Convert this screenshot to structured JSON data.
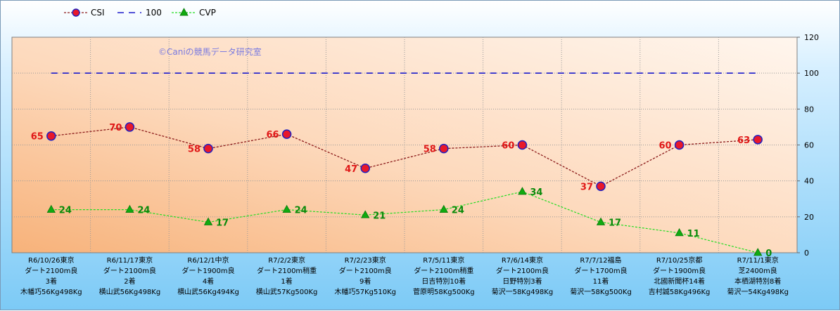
{
  "watermark": "©Caniの競馬データ研究室",
  "chart_data": {
    "type": "line",
    "ylim": [
      0,
      120
    ],
    "yticks": [
      0,
      20,
      40,
      60,
      80,
      100,
      120
    ],
    "grid": true,
    "legend_position": "top-left",
    "categories": [
      [
        "R6/10/26東京",
        "ダート2100m良",
        "3着",
        "木幡巧56Kg498Kg"
      ],
      [
        "R6/11/17東京",
        "ダート2100m良",
        "2着",
        "横山武56Kg498Kg"
      ],
      [
        "R6/12/1中京",
        "ダート1900m良",
        "4着",
        "横山武56Kg494Kg"
      ],
      [
        "R7/2/2東京",
        "ダート2100m稍重",
        "1着",
        "横山武57Kg500Kg"
      ],
      [
        "R7/2/23東京",
        "ダート2100m良",
        "9着",
        "木幡巧57Kg510Kg"
      ],
      [
        "R7/5/11東京",
        "ダート2100m稍重",
        "日吉特別10着",
        "菅原明58Kg500Kg"
      ],
      [
        "R7/6/14東京",
        "ダート2100m良",
        "日野特別3着",
        "菊沢一58Kg498Kg"
      ],
      [
        "R7/7/12福島",
        "ダート1700m良",
        "11着",
        "菊沢一58Kg500Kg"
      ],
      [
        "R7/10/25京都",
        "ダート1900m良",
        "北國新聞杯14着",
        "吉村誠58Kg496Kg"
      ],
      [
        "R7/11/1東京",
        "芝2400m良",
        "本栖湖特別8着",
        "菊沢一54Kg498Kg"
      ]
    ],
    "series": [
      {
        "name": "CSI",
        "values": [
          65,
          70,
          58,
          66,
          47,
          58,
          60,
          37,
          60,
          63
        ],
        "color": "#8b1a1a",
        "marker": "circle",
        "marker_fill": "#e8182a",
        "marker_stroke": "#2020c0",
        "label_color": "#e01818",
        "dash": "dotted"
      },
      {
        "name": "100",
        "values": [
          100,
          100,
          100,
          100,
          100,
          100,
          100,
          100,
          100,
          100
        ],
        "color": "#1a1acc",
        "marker": "none",
        "dash": "dashed"
      },
      {
        "name": "CVP",
        "values": [
          24,
          24,
          17,
          24,
          21,
          24,
          34,
          17,
          11,
          0
        ],
        "color": "#22dd22",
        "marker": "triangle",
        "marker_fill": "#10aa10",
        "label_color": "#0a8a0a",
        "dash": "dotted"
      }
    ]
  }
}
